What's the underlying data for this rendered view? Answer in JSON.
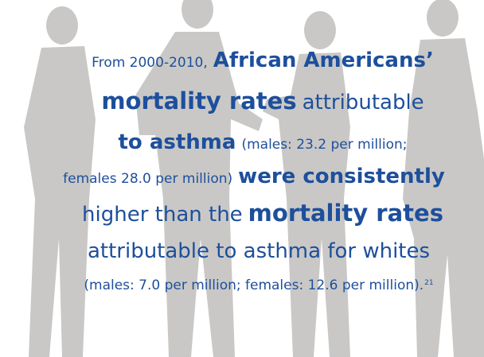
{
  "text": {
    "lines": [
      [
        "From 2000-2010,",
        "African Americans’"
      ],
      [
        "mortality rates",
        "attributable"
      ],
      [
        "to asthma",
        "(males: 23.2 per million;"
      ],
      [
        "females 28.0 per million)",
        "were consistently"
      ],
      [
        "higher than the",
        "mortality rates"
      ],
      [
        "attributable to asthma for whites"
      ],
      [
        "(males: 7.0 per million; females: 12.6 per million)."
      ]
    ],
    "footnote": "21"
  }
}
